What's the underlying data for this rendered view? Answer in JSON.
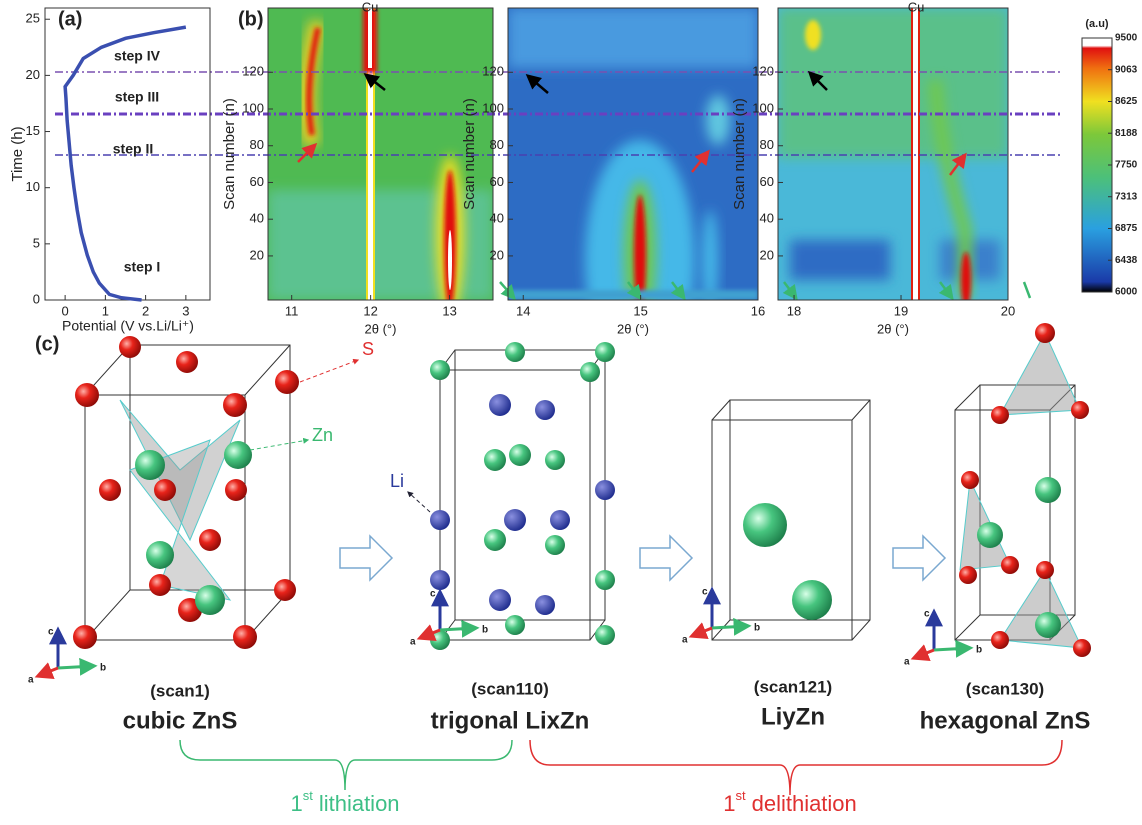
{
  "panel_a": {
    "type": "line",
    "label": "(a)",
    "xlabel": "Potential (V vs.Li/Li⁺)",
    "ylabel": "Time (h)",
    "x": [
      1.9,
      1.4,
      1.1,
      0.85,
      0.7,
      0.55,
      0.4,
      0.3,
      0.22,
      0.15,
      0.1,
      0.05,
      0.02,
      0,
      0.2,
      0.45,
      0.9,
      1.5,
      2.2,
      3
    ],
    "y": [
      0,
      0.2,
      0.5,
      1.5,
      2.5,
      4,
      6,
      8,
      10,
      12,
      14,
      16,
      18,
      19,
      20,
      21.5,
      22.5,
      23.3,
      23.8,
      24.3
    ],
    "color": "#3a4fb0",
    "xlim": [
      -0.5,
      3.6
    ],
    "ylim": [
      0,
      26
    ],
    "xticks": [
      0,
      1,
      2,
      3
    ],
    "yticks": [
      0,
      5,
      10,
      15,
      20,
      25
    ],
    "annotations": [
      "step IV",
      "step III",
      "step II",
      "step I"
    ]
  },
  "panel_b": {
    "label": "(b)",
    "ylabel": "Scan number (n)",
    "xlabel": "2θ (°)",
    "ylim": [
      -4,
      155
    ],
    "yticks": [
      20,
      40,
      60,
      80,
      100,
      120
    ],
    "plots": [
      {
        "xlim": [
          10.7,
          13.55
        ],
        "xticks": [
          11,
          12,
          13
        ],
        "annotation": "Cu"
      },
      {
        "xlim": [
          13.87,
          16.0
        ],
        "xticks": [
          14,
          15,
          16
        ]
      },
      {
        "xlim": [
          17.85,
          20
        ],
        "xticks": [
          18,
          19,
          20
        ],
        "annotation": "Cu"
      }
    ],
    "colorbar": {
      "title": "(a.u)",
      "range": [
        6000,
        9500
      ],
      "ticks": [
        9500,
        9063,
        8625,
        8188,
        7750,
        7313,
        6875,
        6438,
        6000
      ]
    }
  },
  "panel_c": {
    "label": "(c)",
    "atoms": [
      "S",
      "Zn",
      "Li"
    ],
    "axes": [
      "a",
      "b",
      "c"
    ],
    "structures": [
      {
        "scan": "(scan1)",
        "phase": "cubic ZnS"
      },
      {
        "scan": "(scan110)",
        "phase": "trigonal LixZn"
      },
      {
        "scan": "(scan121)",
        "phase": "LiyZn"
      },
      {
        "scan": "(scan130)",
        "phase": "hexagonal ZnS"
      }
    ],
    "stages": [
      {
        "num": "1",
        "sup": "st",
        "text": "lithiation"
      },
      {
        "num": "1",
        "sup": "st",
        "text": "delithiation"
      }
    ]
  }
}
